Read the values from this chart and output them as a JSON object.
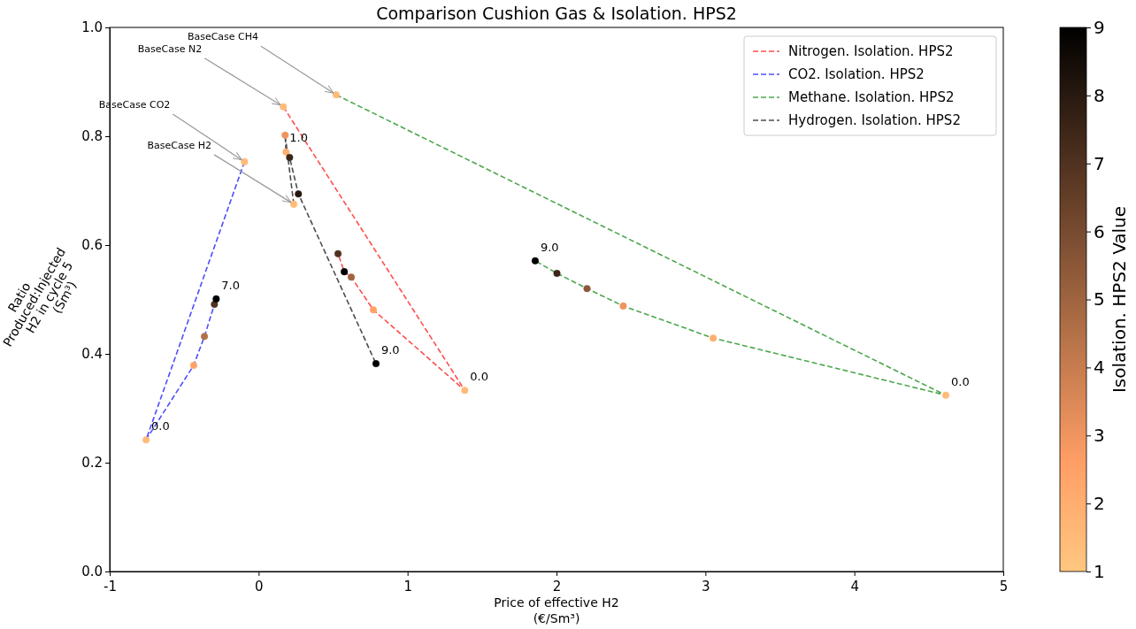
{
  "chart_data": {
    "type": "line",
    "title": "Comparison Cushion Gas & Isolation. HPS2",
    "xlabel": "Price of effective H2\n(€/Sm³)",
    "ylabel": "Ratio\nProduced:Injected\nH2 in cycle 5\n(Sm³)",
    "clabel": "Isolation. HPS2 Value",
    "xlim": [
      -1,
      5
    ],
    "ylim": [
      0,
      1.0
    ],
    "xticks": [
      -1,
      0,
      1,
      2,
      3,
      4,
      5
    ],
    "yticks": [
      {
        "value": 0,
        "label": "0.0"
      },
      {
        "value": 0.2,
        "label": "0.2"
      },
      {
        "value": 0.4,
        "label": "0.4"
      },
      {
        "value": 0.6,
        "label": "0.6"
      },
      {
        "value": 0.8,
        "label": "0.8"
      },
      {
        "value": 1.0,
        "label": "1.0"
      }
    ],
    "clim": [
      1,
      9
    ],
    "cticks": [
      1,
      2,
      3,
      4,
      5,
      6,
      7,
      8,
      9
    ],
    "legend": "top right",
    "line_style": "dashed",
    "series": [
      {
        "name": "Nitrogen. Isolation. HPS2",
        "color": "#ff4d4d",
        "x": [
          0.166,
          1.384,
          0.77,
          0.622,
          0.575,
          0.533
        ],
        "values": [
          0.854,
          0.333,
          0.481,
          0.541,
          0.551,
          0.584
        ]
      },
      {
        "name": "CO2. Isolation. HPS2",
        "color": "#4d4dff",
        "x": [
          -0.095,
          -0.756,
          -0.436,
          -0.364,
          -0.297,
          -0.285
        ],
        "values": [
          0.753,
          0.242,
          0.379,
          0.432,
          0.491,
          0.501
        ]
      },
      {
        "name": "Methane. Isolation. HPS2",
        "color": "#4da64d",
        "x": [
          0.521,
          4.614,
          3.052,
          2.448,
          2.205,
          2.003,
          1.857
        ],
        "values": [
          0.876,
          0.324,
          0.429,
          0.488,
          0.52,
          0.548,
          0.571
        ]
      },
      {
        "name": "Hydrogen. Isolation. HPS2",
        "color": "#4d4d4d",
        "x": [
          0.236,
          0.178,
          0.184,
          0.208,
          0.267,
          0.788
        ],
        "values": [
          0.675,
          0.802,
          0.771,
          0.761,
          0.694,
          0.382
        ]
      },
      {
        "type": "scatter",
        "x": [
          0.166,
          1.384,
          0.77,
          0.622,
          0.575,
          0.533
        ],
        "values": [
          0.854,
          0.333,
          0.481,
          0.541,
          0.551,
          0.584
        ],
        "cvalues": [
          1.5,
          1.5,
          2.5,
          5,
          9,
          7
        ],
        "colors": [
          "#ffbb77",
          "#ffbb77",
          "#ffa267",
          "#9f643f",
          "#000000",
          "#503220"
        ],
        "marker": "circle"
      },
      {
        "type": "scatter",
        "x": [
          -0.095,
          -0.756,
          -0.436,
          -0.364,
          -0.297,
          -0.285
        ],
        "values": [
          0.753,
          0.242,
          0.379,
          0.432,
          0.491,
          0.501
        ],
        "cvalues": [
          1.5,
          1.5,
          2.5,
          4.5,
          7,
          9
        ],
        "colors": [
          "#ffbb77",
          "#ffbb77",
          "#ffa267",
          "#b37047",
          "#503220",
          "#000000"
        ],
        "marker": "circle"
      },
      {
        "type": "scatter",
        "x": [
          0.521,
          4.614,
          3.052,
          2.448,
          2.205,
          2.003,
          1.857
        ],
        "values": [
          0.876,
          0.324,
          0.429,
          0.488,
          0.52,
          0.548,
          0.571
        ],
        "cvalues": [
          1.5,
          1.5,
          2,
          3,
          5.5,
          7.5,
          9
        ],
        "colors": [
          "#ffbb77",
          "#ffbb77",
          "#ffae6f",
          "#ef955f",
          "#8b5738",
          "#3c2518",
          "#000000"
        ],
        "marker": "circle"
      },
      {
        "type": "scatter",
        "x": [
          0.236,
          0.178,
          0.184,
          0.208,
          0.267,
          0.788
        ],
        "values": [
          0.675,
          0.802,
          0.771,
          0.761,
          0.694,
          0.382
        ],
        "cvalues": [
          1.5,
          3,
          2,
          7.5,
          8,
          9
        ],
        "colors": [
          "#ffbb77",
          "#ef955f",
          "#ffae6f",
          "#3c2518",
          "#281910",
          "#000000"
        ],
        "marker": "circle"
      }
    ],
    "annotations": [
      {
        "text": "BaseCase CH4",
        "x": 0.521,
        "y": 0.876
      },
      {
        "text": "BaseCase N2",
        "x": 0.166,
        "y": 0.854
      },
      {
        "text": "BaseCase CO2",
        "x": -0.095,
        "y": 0.753
      },
      {
        "text": "BaseCase H2",
        "x": 0.236,
        "y": 0.675
      },
      {
        "text": "0.0",
        "x": -0.756,
        "y": 0.242
      },
      {
        "text": "7.0",
        "x": -0.285,
        "y": 0.501
      },
      {
        "text": "1.0",
        "x": 0.178,
        "y": 0.802
      },
      {
        "text": "9.0",
        "x": 0.788,
        "y": 0.382
      },
      {
        "text": "0.0",
        "x": 1.384,
        "y": 0.333
      },
      {
        "text": "9.0",
        "x": 1.857,
        "y": 0.571
      },
      {
        "text": "0.0",
        "x": 4.614,
        "y": 0.324
      }
    ]
  }
}
